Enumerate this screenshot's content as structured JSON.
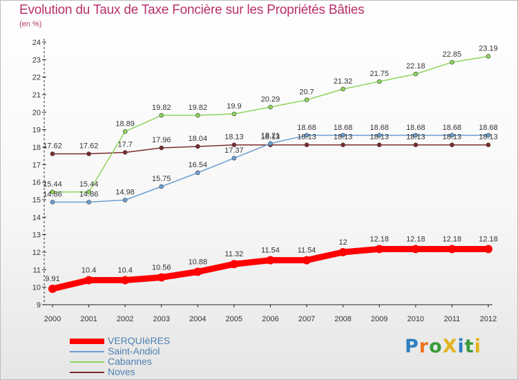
{
  "chart_data": {
    "type": "line",
    "title": "Evolution du Taux de Taxe Foncière sur les Propriétés Bâties",
    "subtitle": "(en %)",
    "categories": [
      "2000",
      "2001",
      "2002",
      "2003",
      "2004",
      "2005",
      "2006",
      "2007",
      "2008",
      "2009",
      "2010",
      "2011",
      "2012"
    ],
    "ylim": [
      9,
      24
    ],
    "yticks": [
      "9",
      "10",
      "11",
      "12",
      "13",
      "14",
      "15",
      "16",
      "17",
      "18",
      "19",
      "20",
      "21",
      "22",
      "23",
      "24"
    ],
    "grid": false,
    "legend_position": "bottom-left",
    "series": [
      {
        "name": "VERQUIèRES",
        "color": "#ff0000",
        "values": [
          9.91,
          10.4,
          10.4,
          10.56,
          10.88,
          11.32,
          11.54,
          11.54,
          12,
          12.18,
          12.18,
          12.18,
          12.18
        ],
        "labels": [
          "9.91",
          "10.4",
          "10.4",
          "10.56",
          "10.88",
          "11.32",
          "11.54",
          "11.54",
          "12",
          "12.18",
          "12.18",
          "12.18",
          "12.18"
        ]
      },
      {
        "name": "Saint-Andiol",
        "color": "#6a9ed0",
        "values": [
          14.86,
          14.86,
          14.98,
          15.75,
          16.54,
          17.37,
          18.21,
          18.68,
          18.68,
          18.68,
          18.68,
          18.68,
          18.68
        ],
        "labels": [
          "14.86",
          "14.86",
          "14.98",
          "15.75",
          "16.54",
          "17.37",
          "18.21",
          "18.68",
          "18.68",
          "18.68",
          "18.68",
          "18.68",
          "18.68"
        ]
      },
      {
        "name": "Cabannes",
        "color": "#8fd45a",
        "values": [
          15.44,
          15.44,
          18.89,
          19.82,
          19.82,
          19.9,
          20.29,
          20.7,
          21.32,
          21.75,
          22.18,
          22.85,
          23.19
        ],
        "labels": [
          "15.44",
          "15.44",
          "18.89",
          "19.82",
          "19.82",
          "19.9",
          "20.29",
          "20.7",
          "21.32",
          "21.75",
          "22.18",
          "22.85",
          "23.19"
        ]
      },
      {
        "name": "Noves",
        "color": "#7b2b2b",
        "values": [
          17.62,
          17.62,
          17.7,
          17.96,
          18.04,
          18.13,
          18.13,
          18.13,
          18.13,
          18.13,
          18.13,
          18.13,
          18.13
        ],
        "labels": [
          "17.62",
          "17.62",
          "17.7",
          "17.96",
          "18.04",
          "18.13",
          "18.13",
          "18.13",
          "18.13",
          "18.13",
          "18.13",
          "18.13",
          "18.13"
        ]
      }
    ]
  },
  "logo": {
    "letters": [
      {
        "ch": "P",
        "color": "#2f7fc1"
      },
      {
        "ch": "r",
        "color": "#e8731c"
      },
      {
        "ch": "o",
        "color": "#3b9b3b"
      },
      {
        "ch": "X",
        "color": "#e3b21c"
      },
      {
        "ch": "i",
        "color": "#2f7fc1"
      },
      {
        "ch": "t",
        "color": "#3b9b3b"
      },
      {
        "ch": "i",
        "color": "#e3b21c"
      }
    ]
  }
}
